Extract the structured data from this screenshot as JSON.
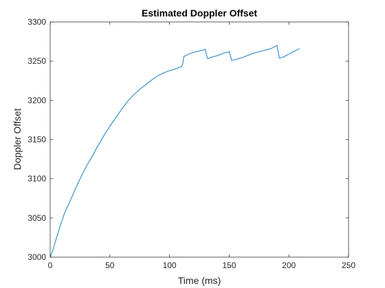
{
  "chart_data": {
    "type": "line",
    "title": "Estimated Doppler Offset",
    "xlabel": "Time (ms)",
    "ylabel": "Doppler Offset",
    "xlim": [
      0,
      250
    ],
    "ylim": [
      3000,
      3300
    ],
    "grid": false,
    "xticks": [
      "0",
      "50",
      "100",
      "150",
      "200",
      "250"
    ],
    "yticks": [
      "3000",
      "3050",
      "3100",
      "3150",
      "3200",
      "3250",
      "3300"
    ],
    "line_color": "#0072bd",
    "series": [
      {
        "x": [
          0,
          2,
          4,
          6,
          8,
          10,
          12,
          15,
          18,
          22,
          26,
          30,
          35,
          40,
          45,
          50,
          55,
          60,
          65,
          70,
          75,
          80,
          85,
          90,
          95,
          100,
          105,
          110,
          111,
          112,
          116,
          120,
          125,
          128,
          130,
          131,
          132,
          135,
          140,
          145,
          150,
          151,
          152,
          155,
          160,
          165,
          170,
          175,
          180,
          185,
          190,
          191,
          192,
          195,
          200,
          205,
          209
        ],
        "y": [
          3000,
          3008,
          3018,
          3028,
          3038,
          3047,
          3056,
          3066,
          3076,
          3090,
          3103,
          3115,
          3128,
          3142,
          3155,
          3167,
          3178,
          3189,
          3199,
          3207,
          3214,
          3220,
          3226,
          3231,
          3235,
          3238,
          3240,
          3243,
          3246,
          3256,
          3259,
          3261,
          3263,
          3264,
          3265,
          3258,
          3253,
          3255,
          3257,
          3260,
          3262,
          3257,
          3251,
          3252,
          3254,
          3257,
          3260,
          3262,
          3264,
          3266,
          3270,
          3262,
          3254,
          3255,
          3259,
          3263,
          3266
        ]
      }
    ]
  }
}
